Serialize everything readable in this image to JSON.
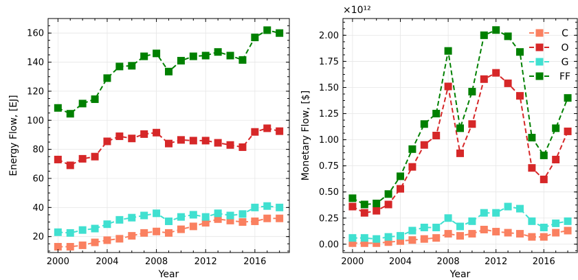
{
  "chart_data": [
    {
      "type": "line",
      "title": "",
      "xlabel": "Year",
      "ylabel": "Energy Flow, [EJ]",
      "xlim": [
        1999.2,
        2018.8
      ],
      "ylim": [
        9,
        170
      ],
      "xticks": [
        2000,
        2004,
        2008,
        2012,
        2016
      ],
      "yticks": [
        20,
        40,
        60,
        80,
        100,
        120,
        140,
        160
      ],
      "ytick_labels": [
        "20",
        "40",
        "60",
        "80",
        "100",
        "120",
        "140",
        "160"
      ],
      "grid": true,
      "legend": null,
      "x": [
        2000,
        2001,
        2002,
        2003,
        2004,
        2005,
        2006,
        2007,
        2008,
        2009,
        2010,
        2011,
        2012,
        2013,
        2014,
        2015,
        2016,
        2017,
        2018
      ],
      "series": [
        {
          "name": "C",
          "color": "#fa8060",
          "values": [
            13,
            13,
            14,
            16,
            17.5,
            18.5,
            20.5,
            22.5,
            23.5,
            22.5,
            25,
            27,
            29.5,
            32,
            31,
            30,
            30.5,
            32.5,
            32.5
          ]
        },
        {
          "name": "O",
          "color": "#d62728",
          "values": [
            73,
            69,
            73.5,
            75,
            85.5,
            89,
            87.5,
            90.5,
            91.5,
            84,
            86.5,
            86,
            86,
            84.5,
            83,
            81.5,
            92,
            94.5,
            92.5
          ]
        },
        {
          "name": "G",
          "color": "#40e0d0",
          "values": [
            23,
            22.5,
            24.5,
            25.5,
            28.5,
            31.5,
            33,
            34.5,
            36,
            30.5,
            33.5,
            35,
            33.5,
            36,
            34.5,
            35.5,
            40,
            41,
            40
          ]
        },
        {
          "name": "FF",
          "color": "#008000",
          "values": [
            108.5,
            104.5,
            111.5,
            114.5,
            129,
            137,
            137.5,
            144,
            146,
            133.5,
            141,
            144,
            144.5,
            147,
            144.5,
            141.5,
            157,
            162,
            160
          ]
        }
      ]
    },
    {
      "type": "line",
      "title": "",
      "xlabel": "Year",
      "ylabel": "Monetary Flow, [$]",
      "exponent_label": "×10¹²",
      "xlim": [
        1999.2,
        2018.8
      ],
      "ylim": [
        -0.08,
        2.16
      ],
      "xticks": [
        2000,
        2004,
        2008,
        2012,
        2016
      ],
      "yticks": [
        0,
        0.25,
        0.5,
        0.75,
        1.0,
        1.25,
        1.5,
        1.75,
        2.0
      ],
      "ytick_labels": [
        "0.00",
        "0.25",
        "0.50",
        "0.75",
        "1.00",
        "1.25",
        "1.50",
        "1.75",
        "2.00"
      ],
      "grid": true,
      "legend": "top-right",
      "x": [
        2000,
        2001,
        2002,
        2003,
        2004,
        2005,
        2006,
        2007,
        2008,
        2009,
        2010,
        2011,
        2012,
        2013,
        2014,
        2015,
        2016,
        2017,
        2018
      ],
      "series": [
        {
          "name": "C",
          "color": "#fa8060",
          "values": [
            0.01,
            0.01,
            0.01,
            0.02,
            0.03,
            0.04,
            0.05,
            0.06,
            0.1,
            0.08,
            0.1,
            0.14,
            0.12,
            0.11,
            0.1,
            0.07,
            0.07,
            0.11,
            0.13
          ]
        },
        {
          "name": "O",
          "color": "#d62728",
          "values": [
            0.36,
            0.3,
            0.32,
            0.38,
            0.53,
            0.74,
            0.95,
            1.04,
            1.51,
            0.87,
            1.15,
            1.58,
            1.64,
            1.54,
            1.42,
            0.73,
            0.62,
            0.81,
            1.08
          ]
        },
        {
          "name": "G",
          "color": "#40e0d0",
          "values": [
            0.06,
            0.06,
            0.05,
            0.07,
            0.08,
            0.13,
            0.16,
            0.16,
            0.25,
            0.17,
            0.22,
            0.3,
            0.3,
            0.36,
            0.34,
            0.22,
            0.16,
            0.2,
            0.22
          ]
        },
        {
          "name": "FF",
          "color": "#008000",
          "values": [
            0.44,
            0.38,
            0.39,
            0.48,
            0.65,
            0.91,
            1.15,
            1.25,
            1.85,
            1.11,
            1.46,
            2.0,
            2.05,
            1.99,
            1.84,
            1.02,
            0.85,
            1.11,
            1.4
          ]
        }
      ]
    }
  ]
}
